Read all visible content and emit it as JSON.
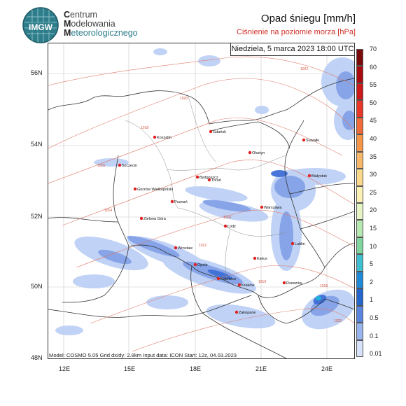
{
  "institute": {
    "line1_initial": "C",
    "line1_rest": "entrum",
    "line2_initial": "M",
    "line2_rest": "odelowania",
    "line3_initial": "M",
    "line3_rest": "eteorologicznego",
    "logo_text": "IMGW"
  },
  "title": "Opad śniegu [mm/h]",
  "subtitle": "Ciśnienie na poziomie morza [hPa]",
  "date": "Niedziela, 5 marca 2023 18:00 UTC",
  "footer": "Model: COSMO 5.05  Grid dx/dy: 2.8km  Input data: ICON  Start: 12z, 04.03.2023",
  "lat_labels": [
    "56N",
    "54N",
    "52N",
    "50N",
    "48N"
  ],
  "lon_labels": [
    "12E",
    "15E",
    "18E",
    "21E",
    "24E"
  ],
  "colorbar": {
    "labels": [
      "70",
      "60",
      "55",
      "50",
      "45",
      "40",
      "35",
      "30",
      "25",
      "20",
      "15",
      "10",
      "5",
      "2",
      "1",
      "0.5",
      "0.1",
      "0.01"
    ],
    "colors": [
      "#7a0a0a",
      "#a80b10",
      "#cc1a1a",
      "#e8382a",
      "#f06a3a",
      "#f59648",
      "#f8b86a",
      "#fbd98a",
      "#fbf1b6",
      "#e7f5c6",
      "#b8e8b2",
      "#7fd49f",
      "#3fbfcf",
      "#1f8bd8",
      "#2466cc",
      "#5b86e0",
      "#9ab4ee",
      "#d8e3fb"
    ]
  },
  "cities": [
    {
      "name": "Gdańsk"
    },
    {
      "name": "Koszalin"
    },
    {
      "name": "Suwałki"
    },
    {
      "name": "Olsztyn"
    },
    {
      "name": "Szczecin"
    },
    {
      "name": "Bydgoszcz"
    },
    {
      "name": "Toruń"
    },
    {
      "name": "Białystok"
    },
    {
      "name": "Gorzów Wielkopolski"
    },
    {
      "name": "Poznań"
    },
    {
      "name": "Warszawa"
    },
    {
      "name": "Zielona Góra"
    },
    {
      "name": "Łódź"
    },
    {
      "name": "Lublin"
    },
    {
      "name": "Wrocław"
    },
    {
      "name": "Kielce"
    },
    {
      "name": "Opole"
    },
    {
      "name": "Katowice"
    },
    {
      "name": "Kraków"
    },
    {
      "name": "Rzeszów"
    },
    {
      "name": "Zakopane"
    }
  ],
  "isobar_labels": [
    "1022",
    "1020",
    "1018",
    "1016",
    "1014",
    "1012",
    "1010",
    "1016",
    "1018",
    "1020"
  ]
}
